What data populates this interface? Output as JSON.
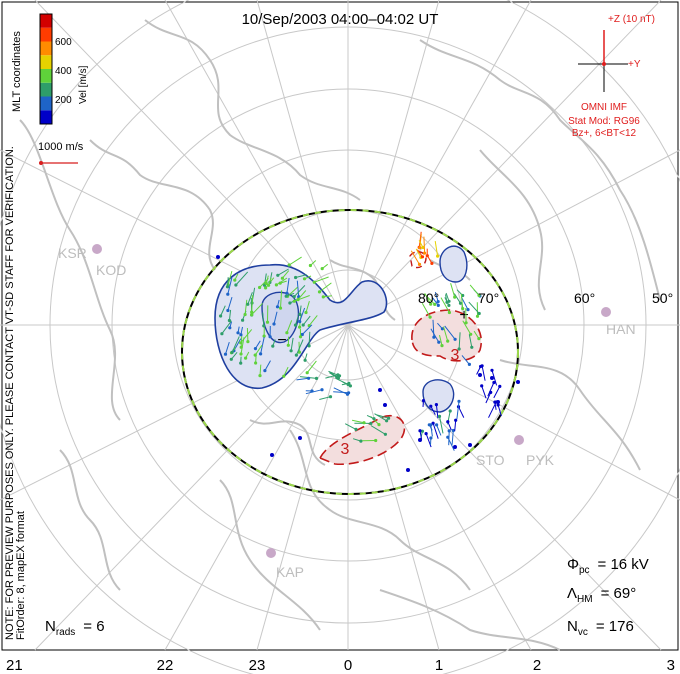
{
  "title": "10/Sep/2003 04:00–04:02 UT",
  "side_note": {
    "line1": "NOTE: FOR PREVIEW PURPOSES ONLY. PLEASE CONTACT VT-SD STAFF FOR VERIFICATION.",
    "line2": "FitOrder: 8, mapEX format"
  },
  "colorbar": {
    "label": "Vel [m/s]",
    "coords_label": "MLT coordinates",
    "ticks": [
      "600",
      "400",
      "200"
    ],
    "colors": [
      "#0000c8",
      "#1e64c8",
      "#2e9e6a",
      "#5fd23a",
      "#e6d200",
      "#ff8c00",
      "#ff3c00",
      "#d20000"
    ]
  },
  "scale_vector": {
    "label": "1000 m/s",
    "color": "#d81e1e"
  },
  "imf": {
    "z_label": "+Z (10 nT)",
    "y_label": "+Y",
    "source": "OMNI IMF",
    "model_line1": "Stat Mod: RG96",
    "model_line2": "Bz+, 6<BT<12",
    "color": "#e01e1e"
  },
  "stations": [
    "KSR",
    "KOD",
    "HAN",
    "STO",
    "PYK",
    "KAP"
  ],
  "lat_labels": [
    "80°",
    "70°",
    "60°",
    "50°"
  ],
  "mlt_labels": [
    "21",
    "22",
    "23",
    "0",
    "1",
    "2",
    "3"
  ],
  "contour_labels": {
    "neg": "−",
    "pos": "+",
    "pos_value": "3",
    "neg_value": "3"
  },
  "stats": {
    "phi_label": "Φ",
    "phi_sub": "pc",
    "phi_value": "= 16 kV",
    "lambda_label": "Λ",
    "lambda_sub": "HM",
    "lambda_value": "= 69°",
    "nvc_label": "N",
    "nvc_sub": "vc",
    "nvc_value": "= 176",
    "nrads_label": "N",
    "nrads_sub": "rads",
    "nrads_value": "= 6"
  }
}
